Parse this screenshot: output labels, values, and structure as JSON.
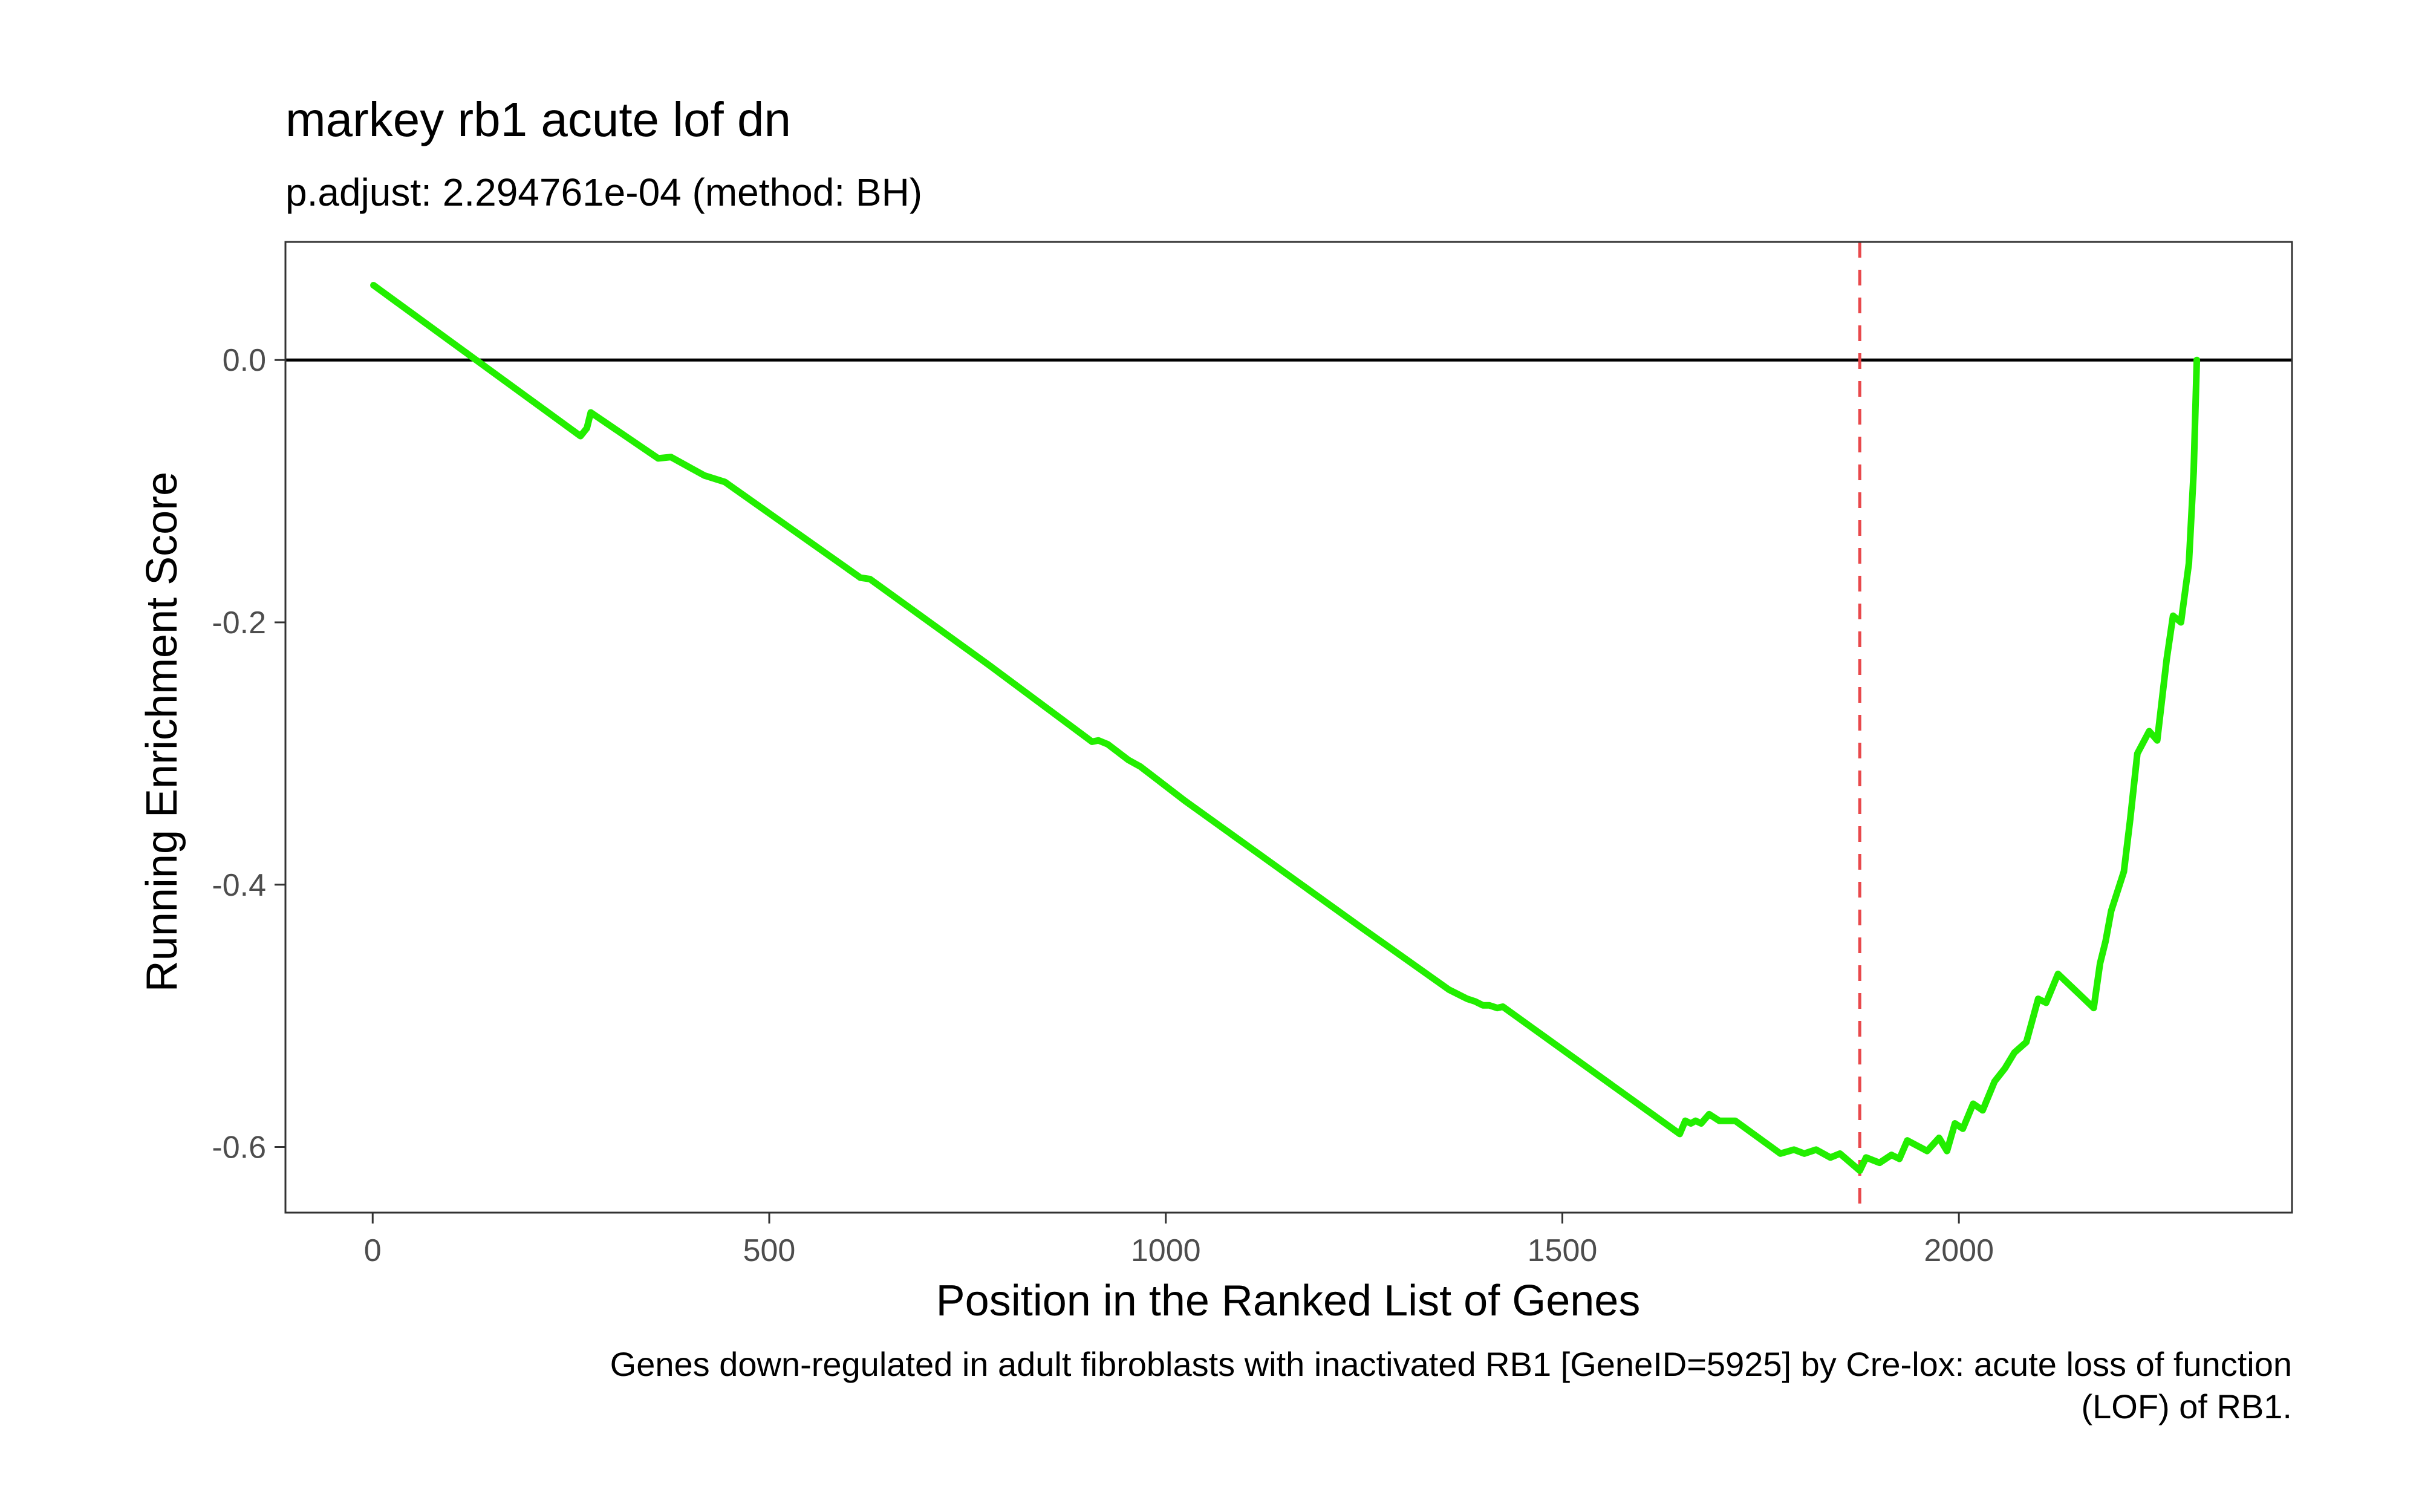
{
  "chart_data": {
    "type": "line",
    "title": "markey rb1 acute lof dn",
    "subtitle": "p.adjust: 2.294761e-04 (method: BH)",
    "xlabel": "Position in the Ranked List of Genes",
    "ylabel": "Running Enrichment Score",
    "caption_lines": [
      "Genes down-regulated in adult fibroblasts with inactivated RB1 [GeneID=5925] by Cre-lox: acute loss of function",
      "(LOF) of RB1."
    ],
    "xlim": [
      -110,
      2420
    ],
    "ylim": [
      -0.65,
      0.09
    ],
    "x_ticks": [
      0,
      500,
      1000,
      1500,
      2000
    ],
    "x_tick_labels": [
      "0",
      "500",
      "1000",
      "1500",
      "2000"
    ],
    "y_ticks": [
      0.0,
      -0.2,
      -0.4,
      -0.6
    ],
    "y_tick_labels": [
      "0.0",
      "-0.2",
      "-0.4",
      "-0.6"
    ],
    "grid": false,
    "line_color": "#22ee00",
    "vline_color": "#e8484b",
    "vline_x": 1875,
    "hit_positions": [
      1,
      262,
      270,
      275,
      360,
      376,
      418,
      444,
      615,
      627,
      778,
      907,
      915,
      927,
      953,
      968,
      1024,
      1245,
      1357,
      1380,
      1390,
      1400,
      1408,
      1418,
      1425,
      1487,
      1648,
      1655,
      1662,
      1668,
      1675,
      1685,
      1698,
      1718,
      1775,
      1792,
      1805,
      1820,
      1838,
      1850,
      1883,
      1900,
      1915,
      1925,
      1935,
      1960,
      1975,
      1985,
      1995,
      2005,
      2018,
      2030,
      2045,
      2058,
      2070,
      2085,
      2100,
      2110,
      2170,
      2178,
      2185,
      2192,
      2200,
      2208,
      2216,
      2225,
      2240,
      2250,
      2262,
      2270,
      2290,
      2295
    ],
    "series": [
      {
        "values": [
          [
            1,
            0.057
          ],
          [
            262,
            -0.058
          ],
          [
            270,
            -0.052
          ],
          [
            275,
            -0.04
          ],
          [
            360,
            -0.075
          ],
          [
            376,
            -0.074
          ],
          [
            418,
            -0.088
          ],
          [
            444,
            -0.093
          ],
          [
            615,
            -0.166
          ],
          [
            627,
            -0.167
          ],
          [
            778,
            -0.233
          ],
          [
            907,
            -0.291
          ],
          [
            915,
            -0.29
          ],
          [
            927,
            -0.293
          ],
          [
            953,
            -0.305
          ],
          [
            968,
            -0.31
          ],
          [
            1024,
            -0.336
          ],
          [
            1245,
            -0.432
          ],
          [
            1357,
            -0.48
          ],
          [
            1380,
            -0.487
          ],
          [
            1390,
            -0.489
          ],
          [
            1400,
            -0.492
          ],
          [
            1408,
            -0.492
          ],
          [
            1418,
            -0.494
          ],
          [
            1425,
            -0.493
          ],
          [
            1487,
            -0.52
          ],
          [
            1648,
            -0.59
          ],
          [
            1655,
            -0.58
          ],
          [
            1662,
            -0.582
          ],
          [
            1668,
            -0.58
          ],
          [
            1675,
            -0.582
          ],
          [
            1685,
            -0.575
          ],
          [
            1698,
            -0.58
          ],
          [
            1718,
            -0.58
          ],
          [
            1775,
            -0.605
          ],
          [
            1792,
            -0.602
          ],
          [
            1805,
            -0.605
          ],
          [
            1820,
            -0.602
          ],
          [
            1838,
            -0.608
          ],
          [
            1850,
            -0.605
          ],
          [
            1875,
            -0.618
          ],
          [
            1883,
            -0.608
          ],
          [
            1900,
            -0.612
          ],
          [
            1915,
            -0.606
          ],
          [
            1925,
            -0.609
          ],
          [
            1935,
            -0.595
          ],
          [
            1960,
            -0.603
          ],
          [
            1975,
            -0.593
          ],
          [
            1985,
            -0.603
          ],
          [
            1995,
            -0.582
          ],
          [
            2005,
            -0.586
          ],
          [
            2018,
            -0.567
          ],
          [
            2030,
            -0.572
          ],
          [
            2045,
            -0.55
          ],
          [
            2058,
            -0.54
          ],
          [
            2070,
            -0.528
          ],
          [
            2085,
            -0.52
          ],
          [
            2100,
            -0.487
          ],
          [
            2110,
            -0.49
          ],
          [
            2125,
            -0.468
          ],
          [
            2170,
            -0.494
          ],
          [
            2178,
            -0.46
          ],
          [
            2185,
            -0.443
          ],
          [
            2192,
            -0.42
          ],
          [
            2200,
            -0.405
          ],
          [
            2208,
            -0.39
          ],
          [
            2216,
            -0.35
          ],
          [
            2225,
            -0.3
          ],
          [
            2240,
            -0.283
          ],
          [
            2250,
            -0.29
          ],
          [
            2262,
            -0.228
          ],
          [
            2270,
            -0.195
          ],
          [
            2280,
            -0.2
          ],
          [
            2290,
            -0.155
          ],
          [
            2296,
            -0.085
          ],
          [
            2300,
            0.0
          ]
        ]
      }
    ]
  }
}
